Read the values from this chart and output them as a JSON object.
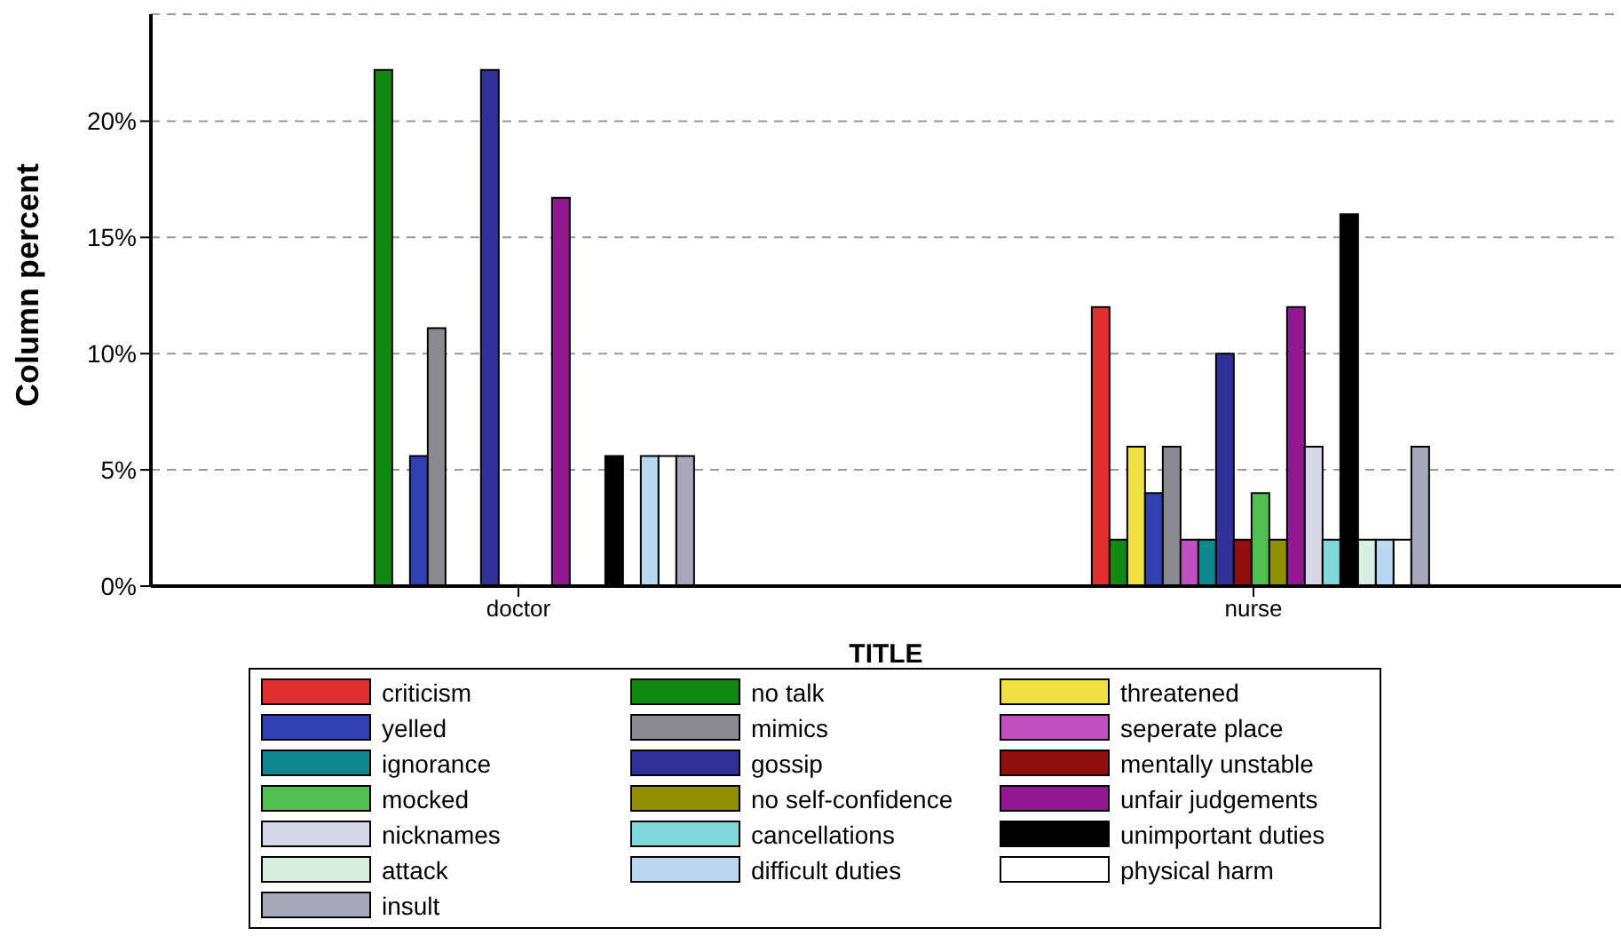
{
  "chart_data": {
    "type": "bar",
    "xlabel": "TITLE",
    "ylabel": "Column percent",
    "categories": [
      "doctor",
      "nurse"
    ],
    "series": [
      {
        "name": "criticism",
        "color": "#e03030",
        "values": [
          0,
          12
        ]
      },
      {
        "name": "no talk",
        "color": "#108a10",
        "values": [
          22.2,
          2
        ]
      },
      {
        "name": "threatened",
        "color": "#f0e040",
        "values": [
          0,
          6
        ]
      },
      {
        "name": "yelled",
        "color": "#3040b0",
        "values": [
          5.6,
          4
        ]
      },
      {
        "name": "mimics",
        "color": "#8a8a90",
        "values": [
          11.1,
          6
        ]
      },
      {
        "name": "seperate place",
        "color": "#c050c0",
        "values": [
          0,
          2
        ]
      },
      {
        "name": "ignorance",
        "color": "#108890",
        "values": [
          0,
          2
        ]
      },
      {
        "name": "gossip",
        "color": "#30309a",
        "values": [
          22.2,
          10
        ]
      },
      {
        "name": "mentally unstable",
        "color": "#901010",
        "values": [
          0,
          2
        ]
      },
      {
        "name": "mocked",
        "color": "#50c050",
        "values": [
          0,
          4
        ]
      },
      {
        "name": "no self-confidence",
        "color": "#909000",
        "values": [
          0,
          2
        ]
      },
      {
        "name": "unfair judgements",
        "color": "#901890",
        "values": [
          16.7,
          12
        ]
      },
      {
        "name": "nicknames",
        "color": "#d8d8ea",
        "values": [
          0,
          6
        ]
      },
      {
        "name": "cancellations",
        "color": "#80d8d8",
        "values": [
          0,
          2
        ]
      },
      {
        "name": "unimportant duties",
        "color": "#000000",
        "values": [
          5.6,
          16
        ]
      },
      {
        "name": "attack",
        "color": "#d8f0e0",
        "values": [
          0,
          2
        ]
      },
      {
        "name": "difficult duties",
        "color": "#b8d8f0",
        "values": [
          5.6,
          2
        ]
      },
      {
        "name": "physical harm",
        "color": "#ffffff",
        "values": [
          5.6,
          2
        ]
      },
      {
        "name": "insult",
        "color": "#a8a8b8",
        "values": [
          5.6,
          6
        ]
      }
    ],
    "ylim": [
      0,
      24.6
    ],
    "yticks": [
      {
        "value": 0,
        "label": "0%"
      },
      {
        "value": 5,
        "label": "5%"
      },
      {
        "value": 10,
        "label": "10%"
      },
      {
        "value": 15,
        "label": "15%"
      },
      {
        "value": 20,
        "label": "20%"
      }
    ],
    "grid": "y",
    "legend": "bottom"
  }
}
